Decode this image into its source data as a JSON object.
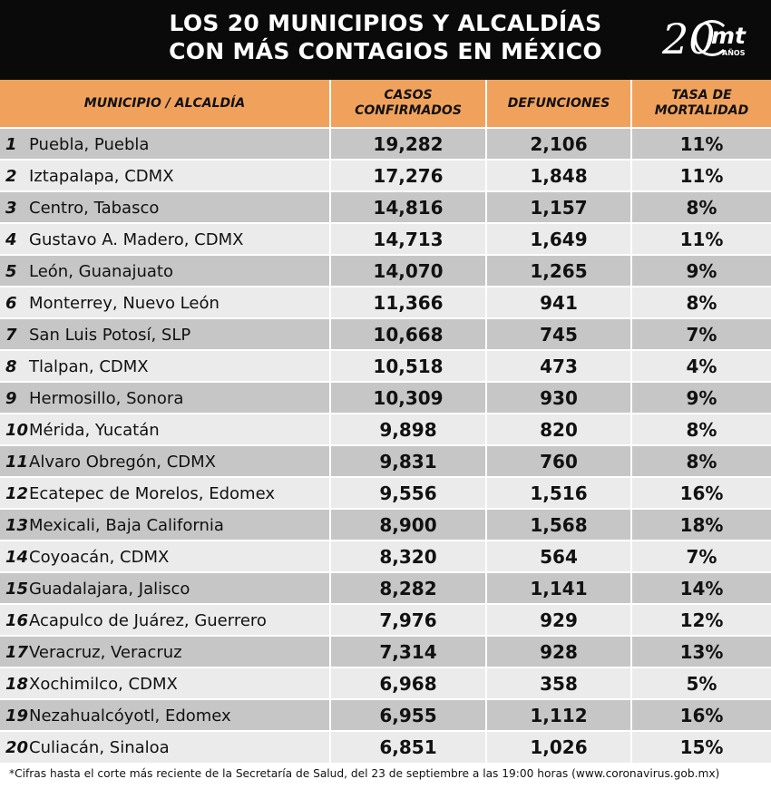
{
  "title": {
    "line1": "LOS 20 MUNICIPIOS Y ALCALDÍAS",
    "line2": "CON MÁS CONTAGIOS EN MÉXICO"
  },
  "logo": {
    "number": "20",
    "brand": "mt",
    "suffix": "AÑOS"
  },
  "colors": {
    "header_bg": "#0a0a0a",
    "column_header_bg": "#f0a25c",
    "row_dark": "#c6c6c6",
    "row_light": "#ebebeb"
  },
  "columns": {
    "municipio": "MUNICIPIO / ALCALDÍA",
    "casos_line1": "CASOS",
    "casos_line2": "CONFIRMADOS",
    "defunciones": "DEFUNCIONES",
    "tasa_line1": "TASA DE",
    "tasa_line2": "MORTALIDAD"
  },
  "rows": [
    {
      "rank": "1",
      "name": "Puebla, Puebla",
      "casos": "19,282",
      "defunciones": "2,106",
      "tasa": "11%"
    },
    {
      "rank": "2",
      "name": "Iztapalapa, CDMX",
      "casos": "17,276",
      "defunciones": "1,848",
      "tasa": "11%"
    },
    {
      "rank": "3",
      "name": "Centro, Tabasco",
      "casos": "14,816",
      "defunciones": "1,157",
      "tasa": "8%"
    },
    {
      "rank": "4",
      "name": "Gustavo A. Madero, CDMX",
      "casos": "14,713",
      "defunciones": "1,649",
      "tasa": "11%"
    },
    {
      "rank": "5",
      "name": "León, Guanajuato",
      "casos": "14,070",
      "defunciones": "1,265",
      "tasa": "9%"
    },
    {
      "rank": "6",
      "name": "Monterrey, Nuevo León",
      "casos": "11,366",
      "defunciones": "941",
      "tasa": "8%"
    },
    {
      "rank": "7",
      "name": "San Luis Potosí, SLP",
      "casos": "10,668",
      "defunciones": "745",
      "tasa": "7%"
    },
    {
      "rank": "8",
      "name": "Tlalpan, CDMX",
      "casos": "10,518",
      "defunciones": "473",
      "tasa": "4%"
    },
    {
      "rank": "9",
      "name": "Hermosillo, Sonora",
      "casos": "10,309",
      "defunciones": "930",
      "tasa": "9%"
    },
    {
      "rank": "10",
      "name": "Mérida, Yucatán",
      "casos": "9,898",
      "defunciones": "820",
      "tasa": "8%"
    },
    {
      "rank": "11",
      "name": "Alvaro Obregón, CDMX",
      "casos": "9,831",
      "defunciones": "760",
      "tasa": "8%"
    },
    {
      "rank": "12",
      "name": "Ecatepec de Morelos, Edomex",
      "casos": "9,556",
      "defunciones": "1,516",
      "tasa": "16%"
    },
    {
      "rank": "13",
      "name": "Mexicali, Baja California",
      "casos": "8,900",
      "defunciones": "1,568",
      "tasa": "18%"
    },
    {
      "rank": "14",
      "name": "Coyoacán, CDMX",
      "casos": "8,320",
      "defunciones": "564",
      "tasa": "7%"
    },
    {
      "rank": "15",
      "name": "Guadalajara, Jalisco",
      "casos": "8,282",
      "defunciones": "1,141",
      "tasa": "14%"
    },
    {
      "rank": "16",
      "name": "Acapulco de Juárez, Guerrero",
      "casos": "7,976",
      "defunciones": "929",
      "tasa": "12%"
    },
    {
      "rank": "17",
      "name": "Veracruz, Veracruz",
      "casos": "7,314",
      "defunciones": "928",
      "tasa": "13%"
    },
    {
      "rank": "18",
      "name": "Xochimilco, CDMX",
      "casos": "6,968",
      "defunciones": "358",
      "tasa": "5%"
    },
    {
      "rank": "19",
      "name": "Nezahualcóyotl, Edomex",
      "casos": "6,955",
      "defunciones": "1,112",
      "tasa": "16%"
    },
    {
      "rank": "20",
      "name": "Culiacán, Sinaloa",
      "casos": "6,851",
      "defunciones": "1,026",
      "tasa": "15%"
    }
  ],
  "footnote": "*Cifras hasta el corte más reciente de la Secretaría de Salud, del 23 de septiembre a las 19:00 horas (www.coronavirus.gob.mx)"
}
